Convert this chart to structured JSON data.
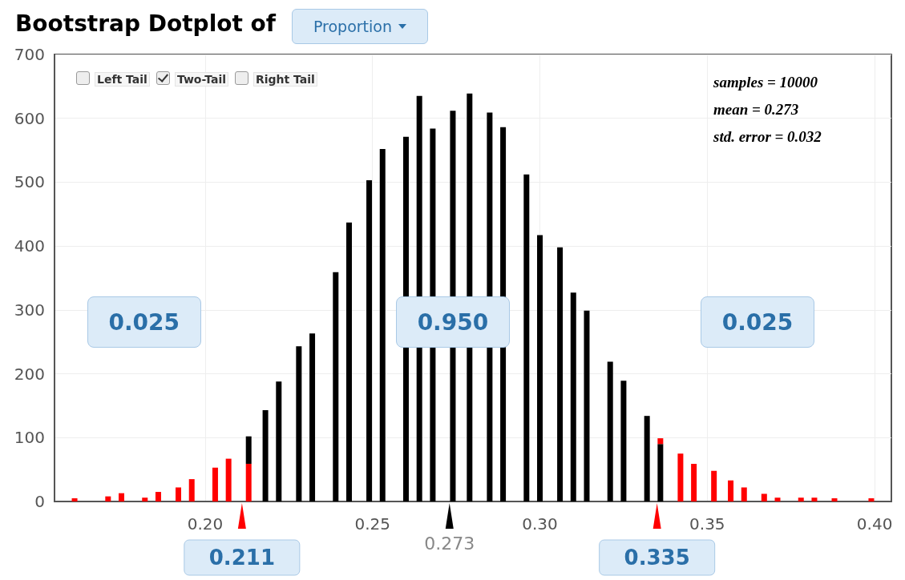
{
  "chart_data": {
    "type": "bar",
    "stacked": true,
    "title": "Bootstrap Dotplot of",
    "x": [
      0.161,
      0.171,
      0.175,
      0.182,
      0.186,
      0.192,
      0.196,
      0.203,
      0.207,
      0.213,
      0.218,
      0.222,
      0.228,
      0.232,
      0.239,
      0.243,
      0.249,
      0.253,
      0.26,
      0.264,
      0.268,
      0.274,
      0.279,
      0.285,
      0.289,
      0.296,
      0.3,
      0.306,
      0.31,
      0.314,
      0.321,
      0.325,
      0.332,
      0.336,
      0.342,
      0.346,
      0.352,
      0.357,
      0.361,
      0.367,
      0.371,
      0.378,
      0.382,
      0.388,
      0.399
    ],
    "series": [
      {
        "color": "#ff0000",
        "values": [
          5,
          8,
          13,
          6,
          15,
          22,
          35,
          53,
          67,
          59,
          null,
          null,
          null,
          null,
          null,
          null,
          null,
          null,
          null,
          null,
          null,
          null,
          null,
          null,
          null,
          null,
          null,
          null,
          null,
          null,
          null,
          null,
          null,
          null,
          75,
          59,
          48,
          33,
          22,
          12,
          6,
          6,
          6,
          5,
          5
        ]
      },
      {
        "color": "#000000",
        "values": [
          null,
          null,
          null,
          null,
          null,
          null,
          null,
          null,
          null,
          43,
          143,
          188,
          243,
          263,
          359,
          437,
          503,
          552,
          571,
          635,
          584,
          612,
          639,
          609,
          586,
          512,
          417,
          398,
          327,
          299,
          219,
          189,
          134,
          90,
          null,
          null,
          null,
          null,
          null,
          null,
          null,
          null,
          null,
          null,
          null
        ]
      },
      {
        "color": "#ff0000",
        "values": [
          null,
          null,
          null,
          null,
          null,
          null,
          null,
          null,
          null,
          null,
          null,
          null,
          null,
          null,
          null,
          null,
          null,
          null,
          null,
          null,
          null,
          null,
          null,
          null,
          null,
          null,
          null,
          null,
          null,
          null,
          null,
          null,
          null,
          9,
          null,
          null,
          null,
          null,
          null,
          null,
          null,
          null,
          null,
          null,
          null
        ]
      }
    ],
    "xlim": [
      0.155,
      0.405
    ],
    "xticks": [
      {
        "value": 0.2,
        "label": "0.20"
      },
      {
        "value": 0.25,
        "label": "0.25"
      },
      {
        "value": 0.3,
        "label": "0.30"
      },
      {
        "value": 0.35,
        "label": "0.35"
      },
      {
        "value": 0.4,
        "label": "0.40"
      }
    ],
    "ylim": [
      0,
      700
    ],
    "yticks": [
      0,
      100,
      200,
      300,
      400,
      500,
      600,
      700
    ],
    "grid": true,
    "annotations": [
      "Proportion",
      "Left Tail",
      "Two-Tail",
      "Right Tail",
      "samples = 10000",
      "mean = 0.273",
      "std. error = 0.032",
      "0.025",
      "0.950",
      "0.025",
      {
        "text": "0.211",
        "x": 0.211,
        "y": 0
      },
      {
        "text": "0.273",
        "x": 0.273,
        "y": 0
      },
      {
        "text": "0.335",
        "x": 0.335,
        "y": 0
      }
    ]
  }
}
